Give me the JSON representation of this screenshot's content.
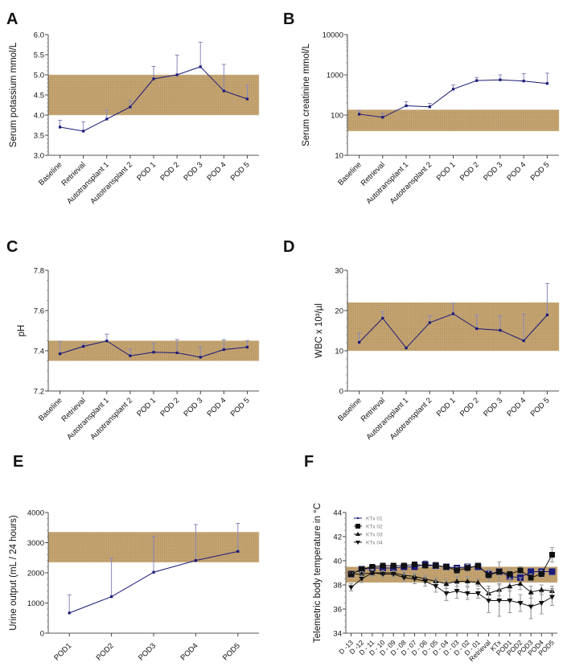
{
  "figure": {
    "band_color": "#c6a672",
    "band_dot_color": "#a8895a",
    "series_color": "#1a1a7a",
    "errorbar_color": "#8888bb",
    "dark_series_color": "#111111"
  },
  "chart_data": [
    {
      "panel": "A",
      "type": "line",
      "ylabel": "Serum potassium mmol/L",
      "xlabel": "",
      "yscale": "linear",
      "ylim": [
        3.0,
        6.0
      ],
      "yticks": [
        3.0,
        3.5,
        4.0,
        4.5,
        5.0,
        5.5,
        6.0
      ],
      "ytick_labels": [
        "3.0",
        "3.5",
        "4.0",
        "4.5",
        "5.0",
        "5.5",
        "6.0"
      ],
      "categories": [
        "Baseline",
        "Retrieval",
        "Autotransplant 1",
        "Autotransplant 2",
        "POD 1",
        "POD 2",
        "POD 3",
        "POD 4",
        "POD 5"
      ],
      "reference_range": [
        4.0,
        5.0
      ],
      "series": [
        {
          "name": "mean",
          "values": [
            3.7,
            3.6,
            3.9,
            4.2,
            4.9,
            5.0,
            5.2,
            4.6,
            4.4
          ],
          "error_upper": [
            3.87,
            3.83,
            4.12,
            4.36,
            5.21,
            5.49,
            5.81,
            5.26,
            4.74
          ]
        }
      ]
    },
    {
      "panel": "B",
      "type": "line",
      "ylabel": "Serum creatinine mmol/L",
      "xlabel": "",
      "yscale": "log",
      "ylim": [
        10,
        10000
      ],
      "yticks": [
        10,
        100,
        1000,
        10000
      ],
      "ytick_labels": [
        "10",
        "100",
        "1000",
        "10000"
      ],
      "categories": [
        "Baseline",
        "Retrieval",
        "Autotransplant 1",
        "Autotransplant 2",
        "POD 1",
        "POD 2",
        "POD 3",
        "POD 4",
        "POD 5"
      ],
      "reference_range": [
        40,
        135
      ],
      "series": [
        {
          "name": "mean",
          "values": [
            105,
            88,
            170,
            160,
            440,
            720,
            750,
            700,
            610
          ],
          "error_upper": [
            130,
            110,
            215,
            195,
            560,
            860,
            1000,
            1070,
            1100
          ]
        }
      ]
    },
    {
      "panel": "C",
      "type": "line",
      "ylabel": "pH",
      "xlabel": "",
      "yscale": "linear",
      "ylim": [
        7.2,
        7.8
      ],
      "yticks": [
        7.2,
        7.4,
        7.6,
        7.8
      ],
      "ytick_labels": [
        "7.2",
        "7.4",
        "7.6",
        "7.8"
      ],
      "categories": [
        "Baseline",
        "Retrieval",
        "Autotransplant 1",
        "Autotransplant 2",
        "POD 1",
        "POD 2",
        "POD 3",
        "POD 4",
        "POD 5"
      ],
      "reference_range": [
        7.35,
        7.45
      ],
      "series": [
        {
          "name": "mean",
          "values": [
            7.385,
            7.422,
            7.449,
            7.375,
            7.393,
            7.39,
            7.368,
            7.406,
            7.418
          ],
          "error_upper": [
            7.447,
            7.435,
            7.483,
            7.408,
            7.436,
            7.456,
            7.419,
            7.455,
            7.451
          ]
        }
      ]
    },
    {
      "panel": "D",
      "type": "line",
      "ylabel": "WBC x 10³/µl",
      "xlabel": "",
      "yscale": "linear",
      "ylim": [
        0,
        30
      ],
      "yticks": [
        0,
        10,
        20,
        30
      ],
      "ytick_labels": [
        "0",
        "10",
        "20",
        "30"
      ],
      "categories": [
        "Baseline",
        "Retrieval",
        "Autotransplant 1",
        "Autotransplant 2",
        "POD 1",
        "POD 2",
        "POD 3",
        "POD 4",
        "POD 5"
      ],
      "reference_range": [
        10,
        22
      ],
      "series": [
        {
          "name": "mean",
          "values": [
            12.1,
            18.1,
            10.7,
            17.0,
            19.2,
            15.5,
            15.1,
            12.5,
            18.9
          ],
          "error_upper": [
            14.4,
            19.7,
            null,
            18.7,
            21.8,
            18.9,
            18.7,
            19.1,
            26.7
          ]
        }
      ]
    },
    {
      "panel": "E",
      "type": "line",
      "ylabel": "Urine output (mL / 24 hours)",
      "xlabel": "",
      "yscale": "linear",
      "ylim": [
        0,
        4000
      ],
      "yticks": [
        0,
        1000,
        2000,
        3000,
        4000
      ],
      "ytick_labels": [
        "0",
        "1000",
        "2000",
        "3000",
        "4000"
      ],
      "categories": [
        "POD1",
        "POD2",
        "POD3",
        "POD4",
        "POD5"
      ],
      "reference_range": [
        2350,
        3350
      ],
      "series": [
        {
          "name": "mean",
          "values": [
            670,
            1210,
            2020,
            2410,
            2710
          ],
          "error_upper": [
            1270,
            2490,
            3210,
            3600,
            3640
          ]
        }
      ]
    },
    {
      "panel": "F",
      "type": "line",
      "ylabel": "Telemetric body temperature in °C",
      "xlabel": "",
      "yscale": "linear",
      "ylim": [
        34,
        44
      ],
      "yticks": [
        34,
        36,
        38,
        40,
        42,
        44
      ],
      "ytick_labels": [
        "34",
        "36",
        "38",
        "40",
        "42",
        "44"
      ],
      "categories": [
        "D -13",
        "D -12",
        "D - 11",
        "D - 10",
        "D - 09",
        "D - 08",
        "D - 07",
        "D - 06",
        "D - 05",
        "D - 04",
        "D - 03",
        "D - 02",
        "D - 01",
        "Retrieval",
        "KTx",
        "POD1",
        "POD2",
        "POD3",
        "POD4",
        "POD5"
      ],
      "reference_range": [
        38.2,
        39.5
      ],
      "legend_position": "top-left",
      "series": [
        {
          "name": "KTx 01",
          "marker": "dot",
          "values": [
            38.9,
            39.3,
            39.4,
            39.4,
            39.4,
            39.5,
            39.5,
            39.7,
            39.6,
            39.5,
            39.4,
            39.5,
            39.5,
            38.9,
            39.1,
            38.7,
            38.6,
            39.1,
            39.1,
            39.1
          ],
          "error": [
            0.1,
            0.1,
            0.1,
            0.1,
            0.1,
            0.1,
            0.1,
            0.3,
            0.2,
            0.1,
            0.2,
            0.2,
            0.1,
            0.3,
            0.2,
            0.2,
            0.2,
            0.3,
            0.3,
            0.3
          ]
        },
        {
          "name": "KTx 02",
          "marker": "square",
          "values": [
            38.9,
            39.3,
            39.5,
            39.6,
            39.6,
            39.6,
            39.7,
            39.6,
            39.6,
            39.5,
            39.2,
            39.4,
            39.6,
            38.8,
            39.1,
            38.9,
            39.2,
            38.6,
            38.9,
            40.5
          ],
          "error": [
            0.1,
            0.2,
            0.1,
            0.1,
            0.2,
            0.2,
            0.2,
            0.2,
            0.3,
            0.2,
            0.3,
            0.3,
            0.1,
            0.5,
            0.8,
            0.4,
            0.3,
            0.3,
            0.3,
            0.6
          ]
        },
        {
          "name": "KTx 03",
          "marker": "triangle-up",
          "values": [
            38.9,
            38.9,
            39.0,
            39.0,
            39.0,
            38.8,
            38.7,
            38.5,
            38.3,
            38.1,
            38.3,
            38.3,
            38.2,
            37.3,
            37.6,
            37.9,
            38.1,
            37.4,
            37.6,
            37.5
          ],
          "error": [
            0.1,
            0.2,
            0.2,
            0.2,
            0.2,
            0.3,
            0.3,
            0.3,
            0.3,
            0.4,
            0.4,
            0.4,
            0.3,
            0.6,
            0.5,
            0.4,
            0.5,
            0.5,
            0.4,
            0.4
          ]
        },
        {
          "name": "KTx 04",
          "marker": "triangle-down",
          "values": [
            37.8,
            38.5,
            39.0,
            38.9,
            38.9,
            38.6,
            38.5,
            38.3,
            37.9,
            37.3,
            37.5,
            37.3,
            37.3,
            36.7,
            36.7,
            36.7,
            36.5,
            36.2,
            36.5,
            37.0
          ],
          "error": [
            0.3,
            0.3,
            0.3,
            0.3,
            0.3,
            0.3,
            0.4,
            0.4,
            0.5,
            0.6,
            0.6,
            0.5,
            0.4,
            1.0,
            1.3,
            1.0,
            0.7,
            1.0,
            0.9,
            0.7
          ]
        }
      ]
    }
  ]
}
